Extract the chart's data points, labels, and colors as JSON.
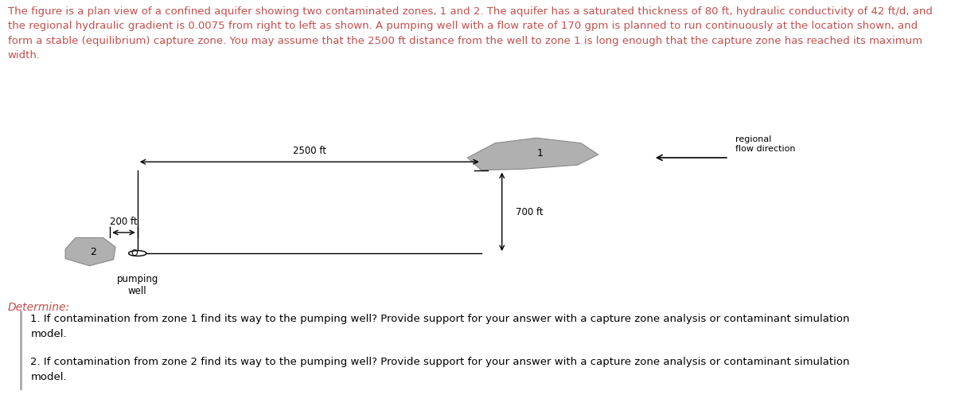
{
  "fig_width": 12.0,
  "fig_height": 5.02,
  "dpi": 100,
  "bg_color": "#ffffff",
  "header_text": "The figure is a plan view of a confined aquifer showing two contaminated zones, 1 and 2. The aquifer has a saturated thickness of 80 ft, hydraulic conductivity of 42 ft/d, and\nthe regional hydraulic gradient is 0.0075 from right to left as shown. A pumping well with a flow rate of 170 gpm is planned to run continuously at the location shown, and\nform a stable (equilibrium) capture zone. You may assume that the 2500 ft distance from the well to zone 1 is long enough that the capture zone has reached its maximum\nwidth.",
  "header_fontsize": 9.5,
  "header_color": "#c0504d",
  "determine_text": "Determine:",
  "determine_fontsize": 10,
  "determine_color": "#c0504d",
  "item1_text": "1. If contamination from zone 1 find its way to the pumping well? Provide support for your answer with a capture zone analysis or contaminant simulation\nmodel.",
  "item2_text": "2. If contamination from zone 2 find its way to the pumping well? Provide support for your answer with a capture zone analysis or contaminant simulation\nmodel.",
  "item_fontsize": 9.5,
  "item_color": "#000000",
  "zone1_color": "#b0b0b0",
  "zone1_edge_color": "#888888",
  "zone1_label": "1",
  "zone2_color": "#b0b0b0",
  "zone2_edge_color": "#888888",
  "zone2_label": "2",
  "well_label": "pumping\nwell",
  "well_label_fontsize": 8.5,
  "well_o_label": "O",
  "dist_2500_label": "2500 ft",
  "dist_700_label": "700 ft",
  "dist_200_label": "200 ft",
  "regional_label": "regional\nflow direction",
  "arrow_color": "#000000",
  "line_color": "#000000"
}
